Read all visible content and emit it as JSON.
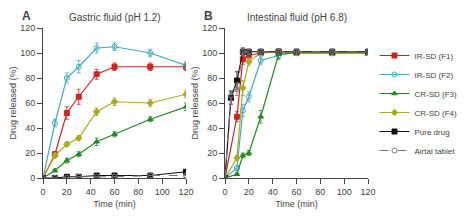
{
  "chart_data": [
    {
      "type": "line",
      "title": "Gastric fluid (pH 1.2)",
      "annotations": [
        "A"
      ],
      "xlabel": "Time (min)",
      "ylabel": "Drug released (%)",
      "xlim": [
        0,
        120
      ],
      "xticks": [
        0,
        20,
        40,
        60,
        80,
        100,
        120
      ],
      "ylim": [
        0,
        120
      ],
      "yticks": [
        0,
        20,
        40,
        60,
        80,
        100,
        120
      ],
      "grid": false,
      "legend": "right",
      "series": [
        {
          "name": "IR-SD (F1)",
          "color": "#cc2222",
          "marker": "square",
          "line_style": "solid",
          "x": [
            0,
            10,
            20,
            30,
            45,
            60,
            90,
            120
          ],
          "values": [
            0,
            19,
            52,
            65,
            83,
            89,
            89,
            89
          ],
          "yerr": [
            0,
            2,
            5,
            6,
            4,
            3,
            3,
            3
          ]
        },
        {
          "name": "IR-SD (F2)",
          "color": "#44aabb",
          "marker": "open circle",
          "line_style": "solid",
          "x": [
            0,
            10,
            20,
            30,
            45,
            60,
            90,
            120
          ],
          "values": [
            0,
            44,
            80,
            89,
            104,
            105,
            100,
            90
          ],
          "yerr": [
            0,
            3,
            4,
            5,
            4,
            3,
            3,
            3
          ]
        },
        {
          "name": "CR-SD (F3)",
          "color": "#228822",
          "marker": "triangle",
          "line_style": "solid",
          "x": [
            0,
            10,
            20,
            30,
            45,
            60,
            90,
            120
          ],
          "values": [
            0,
            6,
            14,
            19,
            29,
            35,
            47,
            57
          ],
          "yerr": [
            0,
            1,
            2,
            2,
            3,
            2,
            2,
            3
          ]
        },
        {
          "name": "CR-SD (F4)",
          "color": "#aaaa22",
          "marker": "diamond",
          "line_style": "solid",
          "x": [
            0,
            10,
            20,
            30,
            45,
            60,
            90,
            120
          ],
          "values": [
            0,
            18,
            27,
            32,
            53,
            61,
            60,
            67
          ],
          "yerr": [
            0,
            2,
            2,
            2,
            3,
            3,
            3,
            3
          ]
        },
        {
          "name": "Pure drug",
          "color": "#111111",
          "marker": "square",
          "line_style": "solid",
          "x": [
            0,
            10,
            20,
            30,
            45,
            60,
            90,
            120
          ],
          "values": [
            0,
            0,
            1,
            1,
            2,
            2,
            2,
            5
          ],
          "yerr": [
            0,
            0,
            0,
            0,
            0,
            0,
            0,
            1
          ]
        },
        {
          "name": "Airtal tablet",
          "color": "#777777",
          "marker": "open circle",
          "line_style": "dashed",
          "x": [
            0,
            10,
            20,
            30,
            45,
            60,
            90,
            120
          ],
          "values": [
            0,
            0,
            0,
            1,
            1,
            1,
            2,
            2
          ],
          "yerr": [
            0,
            0,
            0,
            0,
            0,
            0,
            0,
            0
          ]
        }
      ]
    },
    {
      "type": "line",
      "title": "Intestinal fluid (pH 6.8)",
      "annotations": [
        "B"
      ],
      "xlabel": "Time (min)",
      "ylabel": "Drug released (%)",
      "xlim": [
        0,
        120
      ],
      "xticks": [
        0,
        20,
        40,
        60,
        80,
        100,
        120
      ],
      "ylim": [
        0,
        120
      ],
      "yticks": [
        0,
        20,
        40,
        60,
        80,
        100,
        120
      ],
      "grid": false,
      "legend": "right",
      "series": [
        {
          "name": "IR-SD (F1)",
          "color": "#cc2222",
          "marker": "square",
          "line_style": "solid",
          "x": [
            0,
            10,
            15,
            20,
            30,
            45,
            60,
            90,
            120
          ],
          "values": [
            0,
            49,
            95,
            98,
            100,
            101,
            100,
            100,
            100
          ],
          "yerr": [
            0,
            4,
            4,
            3,
            2,
            2,
            2,
            2,
            2
          ]
        },
        {
          "name": "IR-SD (F2)",
          "color": "#44aabb",
          "marker": "open circle",
          "line_style": "solid",
          "x": [
            0,
            10,
            15,
            20,
            30,
            45,
            60,
            90,
            120
          ],
          "values": [
            0,
            8,
            54,
            65,
            94,
            98,
            101,
            101,
            101
          ],
          "yerr": [
            0,
            2,
            5,
            4,
            3,
            2,
            2,
            2,
            2
          ]
        },
        {
          "name": "CR-SD (F3)",
          "color": "#228822",
          "marker": "triangle",
          "line_style": "solid",
          "x": [
            0,
            10,
            15,
            20,
            30,
            45,
            60,
            90,
            120
          ],
          "values": [
            0,
            3,
            18,
            20,
            49,
            99,
            100,
            100,
            100
          ],
          "yerr": [
            0,
            1,
            2,
            2,
            5,
            4,
            2,
            2,
            2
          ]
        },
        {
          "name": "CR-SD (F4)",
          "color": "#aaaa22",
          "marker": "diamond",
          "line_style": "solid",
          "x": [
            0,
            10,
            15,
            20,
            30,
            45,
            60,
            90,
            120
          ],
          "values": [
            0,
            16,
            72,
            93,
            100,
            101,
            100,
            100,
            100
          ],
          "yerr": [
            0,
            2,
            6,
            3,
            2,
            2,
            2,
            2,
            2
          ]
        },
        {
          "name": "Pure drug",
          "color": "#111111",
          "marker": "square",
          "line_style": "solid",
          "x": [
            0,
            5,
            10,
            15,
            20,
            30,
            45,
            60,
            90,
            120
          ],
          "values": [
            0,
            64,
            78,
            101,
            101,
            101,
            101,
            101,
            101,
            101
          ],
          "yerr": [
            0,
            5,
            7,
            3,
            2,
            2,
            2,
            2,
            2,
            2
          ]
        },
        {
          "name": "Airtal tablet",
          "color": "#777777",
          "marker": "open circle",
          "line_style": "dashed",
          "x": [
            0,
            5,
            10,
            15,
            20,
            30,
            45,
            60,
            90,
            120
          ],
          "values": [
            0,
            66,
            71,
            101,
            101,
            101,
            101,
            101,
            101,
            101
          ],
          "yerr": [
            0,
            4,
            5,
            3,
            2,
            2,
            2,
            2,
            2,
            2
          ]
        }
      ]
    }
  ]
}
